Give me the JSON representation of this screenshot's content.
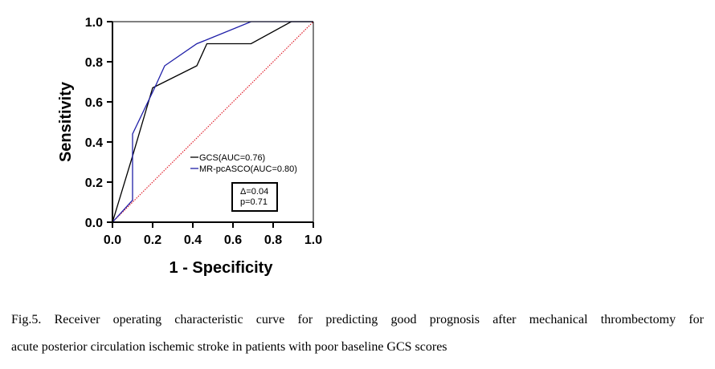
{
  "chart_data": {
    "type": "line",
    "xlabel": "1 - Specificity",
    "ylabel": "Sensitivity",
    "xlim": [
      0,
      1
    ],
    "ylim": [
      0,
      1
    ],
    "xticks": [
      "0.0",
      "0.2",
      "0.4",
      "0.6",
      "0.8",
      "1.0"
    ],
    "yticks": [
      "0.0",
      "0.2",
      "0.4",
      "0.6",
      "0.8",
      "1.0"
    ],
    "grid": false,
    "legend": "inside-lower-right",
    "series": [
      {
        "name": "GCS(AUC=0.76)",
        "color": "#000000",
        "x": [
          0,
          0.1,
          0.2,
          0.42,
          0.47,
          0.69,
          0.89,
          1.0
        ],
        "y": [
          0,
          0.33,
          0.67,
          0.78,
          0.89,
          0.89,
          1.0,
          1.0
        ]
      },
      {
        "name": "MR-pcASCO(AUC=0.80)",
        "color": "#1f1fa8",
        "x": [
          0,
          0.1,
          0.1,
          0.21,
          0.26,
          0.42,
          0.47,
          0.69,
          0.89,
          1.0
        ],
        "y": [
          0,
          0.11,
          0.44,
          0.67,
          0.78,
          0.89,
          0.91,
          1.0,
          1.0,
          1.0
        ]
      }
    ],
    "reference_line": {
      "x": [
        0,
        1
      ],
      "y": [
        0,
        1
      ],
      "color": "#e0202c"
    },
    "annotation": {
      "lines": [
        "Δ=0.04",
        "p=0.71"
      ]
    }
  },
  "caption": {
    "line1": "Fig.5. Receiver operating characteristic curve for predicting good prognosis after mechanical thrombectomy for",
    "line2": "acute posterior circulation ischemic stroke in patients with poor baseline GCS scores"
  }
}
